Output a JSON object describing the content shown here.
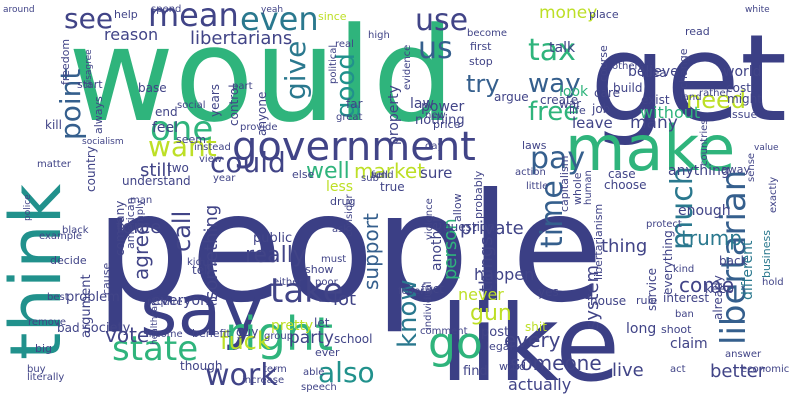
{
  "palette": {
    "dark_navy": "#3b3f85",
    "indigo": "#414487",
    "blue": "#355f8d",
    "teal": "#2a788e",
    "teal_green": "#21918c",
    "green": "#2fb47c",
    "light_green": "#7ad151",
    "yellow": "#bddf26",
    "purple": "#46327e",
    "deep_purple": "#440154"
  },
  "words": [
    {
      "text": "would",
      "color": "#2fb47c"
    },
    {
      "text": "get",
      "color": "#3b3f85"
    },
    {
      "text": "people",
      "color": "#3b3f85"
    },
    {
      "text": "like",
      "color": "#3b3f85"
    },
    {
      "text": "make",
      "color": "#2fb47c"
    },
    {
      "text": "think",
      "color": "#21918c"
    },
    {
      "text": "say",
      "color": "#3b3f85"
    },
    {
      "text": "government",
      "color": "#414487"
    },
    {
      "text": "right",
      "color": "#2fb47c"
    },
    {
      "text": "libertarian",
      "color": "#355f8d"
    },
    {
      "text": "state",
      "color": "#2fb47c"
    },
    {
      "text": "take",
      "color": "#414487"
    },
    {
      "text": "go",
      "color": "#2fb47c"
    },
    {
      "text": "mean",
      "color": "#414487"
    },
    {
      "text": "even",
      "color": "#2a788e"
    },
    {
      "text": "use",
      "color": "#414487"
    },
    {
      "text": "us",
      "color": "#355f8d"
    },
    {
      "text": "tax",
      "color": "#2fb47c"
    },
    {
      "text": "way",
      "color": "#355f8d"
    },
    {
      "text": "need",
      "color": "#bddf26"
    },
    {
      "text": "pay",
      "color": "#355f8d"
    },
    {
      "text": "time",
      "color": "#355f8d"
    },
    {
      "text": "much",
      "color": "#2a788e"
    },
    {
      "text": "want",
      "color": "#bddf26"
    },
    {
      "text": "one",
      "color": "#2fb47c"
    },
    {
      "text": "could",
      "color": "#414487"
    },
    {
      "text": "work",
      "color": "#414487"
    },
    {
      "text": "also",
      "color": "#21918c"
    },
    {
      "text": "know",
      "color": "#2a788e"
    },
    {
      "text": "give",
      "color": "#2a788e"
    },
    {
      "text": "good",
      "color": "#21918c"
    },
    {
      "text": "free",
      "color": "#2fb47c"
    },
    {
      "text": "point",
      "color": "#355f8d"
    },
    {
      "text": "see",
      "color": "#414487"
    },
    {
      "text": "libertarians",
      "color": "#414487"
    },
    {
      "text": "reason",
      "color": "#414487"
    },
    {
      "text": "try",
      "color": "#355f8d"
    },
    {
      "text": "money",
      "color": "#bddf26"
    },
    {
      "text": "talk",
      "color": "#414487"
    },
    {
      "text": "believe",
      "color": "#414487"
    },
    {
      "text": "many",
      "color": "#414487"
    },
    {
      "text": "look",
      "color": "#2fb47c"
    },
    {
      "text": "without",
      "color": "#2fb47c"
    },
    {
      "text": "leave",
      "color": "#414487"
    },
    {
      "text": "still",
      "color": "#414487"
    },
    {
      "text": "well",
      "color": "#2fb47c"
    },
    {
      "text": "market",
      "color": "#bddf26"
    },
    {
      "text": "sure",
      "color": "#414487"
    },
    {
      "text": "really",
      "color": "#414487"
    },
    {
      "text": "call",
      "color": "#414487"
    },
    {
      "text": "agree",
      "color": "#414487"
    },
    {
      "text": "force",
      "color": "#414487"
    },
    {
      "text": "support",
      "color": "#355f8d"
    },
    {
      "text": "person",
      "color": "#2fb47c"
    },
    {
      "text": "private",
      "color": "#414487"
    },
    {
      "text": "things",
      "color": "#414487"
    },
    {
      "text": "happen",
      "color": "#414487"
    },
    {
      "text": "thing",
      "color": "#414487"
    },
    {
      "text": "trump",
      "color": "#2a788e"
    },
    {
      "text": "come",
      "color": "#414487"
    },
    {
      "text": "never",
      "color": "#bddf26"
    },
    {
      "text": "gun",
      "color": "#bddf26"
    },
    {
      "text": "lot",
      "color": "#414487"
    },
    {
      "text": "every",
      "color": "#414487"
    },
    {
      "text": "vote",
      "color": "#414487"
    },
    {
      "text": "fuck",
      "color": "#bddf26"
    },
    {
      "text": "party",
      "color": "#414487"
    },
    {
      "text": "someone",
      "color": "#414487"
    },
    {
      "text": "live",
      "color": "#414487"
    },
    {
      "text": "better",
      "color": "#414487"
    },
    {
      "text": "actually",
      "color": "#414487"
    },
    {
      "text": "system",
      "color": "#414487"
    },
    {
      "text": "something",
      "color": "#414487"
    },
    {
      "text": "everyone",
      "color": "#414487"
    },
    {
      "text": "country",
      "color": "#414487"
    },
    {
      "text": "understand",
      "color": "#414487"
    },
    {
      "text": "public",
      "color": "#414487"
    },
    {
      "text": "enough",
      "color": "#414487"
    },
    {
      "text": "property",
      "color": "#414487"
    },
    {
      "text": "nothing",
      "color": "#414487"
    },
    {
      "text": "power",
      "color": "#414487"
    },
    {
      "text": "create",
      "color": "#414487"
    },
    {
      "text": "different",
      "color": "#2a788e"
    },
    {
      "text": "business",
      "color": "#2a788e"
    },
    {
      "text": "world",
      "color": "#414487"
    },
    {
      "text": "cost",
      "color": "#414487"
    },
    {
      "text": "might",
      "color": "#414487"
    },
    {
      "text": "issue",
      "color": "#414487"
    },
    {
      "text": "exist",
      "color": "#414487"
    },
    {
      "text": "idea",
      "color": "#414487"
    },
    {
      "text": "course",
      "color": "#414487"
    },
    {
      "text": "care",
      "color": "#414487"
    },
    {
      "text": "job",
      "color": "#414487"
    },
    {
      "text": "war",
      "color": "#414487"
    },
    {
      "text": "first",
      "color": "#414487"
    },
    {
      "text": "stop",
      "color": "#414487"
    },
    {
      "text": "place",
      "color": "#414487"
    },
    {
      "text": "read",
      "color": "#414487"
    },
    {
      "text": "white",
      "color": "#414487"
    },
    {
      "text": "help",
      "color": "#414487"
    },
    {
      "text": "spend",
      "color": "#414487"
    },
    {
      "text": "yeah",
      "color": "#414487"
    },
    {
      "text": "since",
      "color": "#bddf26"
    },
    {
      "text": "high",
      "color": "#414487"
    },
    {
      "text": "real",
      "color": "#414487"
    },
    {
      "text": "years",
      "color": "#414487"
    },
    {
      "text": "control",
      "color": "#414487"
    },
    {
      "text": "part",
      "color": "#414487"
    },
    {
      "text": "anyone",
      "color": "#414487"
    },
    {
      "text": "base",
      "color": "#414487"
    },
    {
      "text": "freedom",
      "color": "#414487"
    },
    {
      "text": "start",
      "color": "#414487"
    },
    {
      "text": "always",
      "color": "#414487"
    },
    {
      "text": "kill",
      "color": "#414487"
    },
    {
      "text": "end",
      "color": "#414487"
    },
    {
      "text": "feel",
      "color": "#414487"
    },
    {
      "text": "seem",
      "color": "#414487"
    },
    {
      "text": "instead",
      "color": "#414487"
    },
    {
      "text": "view",
      "color": "#414487"
    },
    {
      "text": "two",
      "color": "#414487"
    },
    {
      "text": "day",
      "color": "#414487"
    },
    {
      "text": "laws",
      "color": "#414487"
    },
    {
      "text": "fund",
      "color": "#414487"
    },
    {
      "text": "less",
      "color": "#bddf26"
    },
    {
      "text": "else",
      "color": "#414487"
    },
    {
      "text": "drug",
      "color": "#414487"
    },
    {
      "text": "true",
      "color": "#414487"
    },
    {
      "text": "sub",
      "color": "#414487"
    },
    {
      "text": "sell",
      "color": "#414487"
    },
    {
      "text": "little",
      "color": "#414487"
    },
    {
      "text": "case",
      "color": "#414487"
    },
    {
      "text": "choose",
      "color": "#414487"
    },
    {
      "text": "anything",
      "color": "#414487"
    },
    {
      "text": "away",
      "color": "#414487"
    },
    {
      "text": "sense",
      "color": "#414487"
    },
    {
      "text": "value",
      "color": "#414487"
    },
    {
      "text": "exactly",
      "color": "#414487"
    },
    {
      "text": "human",
      "color": "#414487"
    },
    {
      "text": "company",
      "color": "#414487"
    },
    {
      "text": "tell",
      "color": "#414487"
    },
    {
      "text": "kid",
      "color": "#414487"
    },
    {
      "text": "run",
      "color": "#414487"
    },
    {
      "text": "either",
      "color": "#414487"
    },
    {
      "text": "show",
      "color": "#414487"
    },
    {
      "text": "poor",
      "color": "#414487"
    },
    {
      "text": "must",
      "color": "#414487"
    },
    {
      "text": "ask",
      "color": "#414487"
    },
    {
      "text": "consider",
      "color": "#414487"
    },
    {
      "text": "another",
      "color": "#414487"
    },
    {
      "text": "question",
      "color": "#414487"
    },
    {
      "text": "yes",
      "color": "#414487"
    },
    {
      "text": "federal",
      "color": "#414487"
    },
    {
      "text": "fact",
      "color": "#414487"
    },
    {
      "text": "protect",
      "color": "#414487"
    },
    {
      "text": "kind",
      "color": "#414487"
    },
    {
      "text": "keep",
      "color": "#414487"
    },
    {
      "text": "back",
      "color": "#414487"
    },
    {
      "text": "hold",
      "color": "#414487"
    },
    {
      "text": "interest",
      "color": "#414487"
    },
    {
      "text": "ban",
      "color": "#414487"
    },
    {
      "text": "rule",
      "color": "#414487"
    },
    {
      "text": "house",
      "color": "#414487"
    },
    {
      "text": "long",
      "color": "#414487"
    },
    {
      "text": "claim",
      "color": "#414487"
    },
    {
      "text": "already",
      "color": "#414487"
    },
    {
      "text": "answer",
      "color": "#414487"
    },
    {
      "text": "economic",
      "color": "#414487"
    },
    {
      "text": "shoot",
      "color": "#414487"
    },
    {
      "text": "post",
      "color": "#414487"
    },
    {
      "text": "legal",
      "color": "#414487"
    },
    {
      "text": "find",
      "color": "#414487"
    },
    {
      "text": "word",
      "color": "#414487"
    },
    {
      "text": "comment",
      "color": "#414487"
    },
    {
      "text": "shit",
      "color": "#bddf26"
    },
    {
      "text": "school",
      "color": "#414487"
    },
    {
      "text": "let",
      "color": "#414487"
    },
    {
      "text": "pretty",
      "color": "#bddf26"
    },
    {
      "text": "ever",
      "color": "#414487"
    },
    {
      "text": "group",
      "color": "#414487"
    },
    {
      "text": "guy",
      "color": "#414487"
    },
    {
      "text": "society",
      "color": "#414487"
    },
    {
      "text": "bad",
      "color": "#414487"
    },
    {
      "text": "problem",
      "color": "#414487"
    },
    {
      "text": "argument",
      "color": "#414487"
    },
    {
      "text": "decide",
      "color": "#414487"
    },
    {
      "text": "example",
      "color": "#414487"
    },
    {
      "text": "police",
      "color": "#414487"
    },
    {
      "text": "black",
      "color": "#414487"
    },
    {
      "text": "cause",
      "color": "#414487"
    },
    {
      "text": "remove",
      "color": "#414487"
    },
    {
      "text": "big",
      "color": "#414487"
    },
    {
      "text": "buy",
      "color": "#414487"
    },
    {
      "text": "literally",
      "color": "#414487"
    },
    {
      "text": "income",
      "color": "#414487"
    },
    {
      "text": "benefit",
      "color": "#414487"
    },
    {
      "text": "healthcare",
      "color": "#414487"
    },
    {
      "text": "though",
      "color": "#414487"
    },
    {
      "text": "increase",
      "color": "#414487"
    },
    {
      "text": "speech",
      "color": "#414487"
    },
    {
      "text": "able",
      "color": "#414487"
    },
    {
      "text": "matter",
      "color": "#414487"
    },
    {
      "text": "law",
      "color": "#414487"
    },
    {
      "text": "far",
      "color": "#414487"
    },
    {
      "text": "new",
      "color": "#414487"
    },
    {
      "text": "great",
      "color": "#414487"
    },
    {
      "text": "price",
      "color": "#414487"
    },
    {
      "text": "argue",
      "color": "#414487"
    },
    {
      "text": "life",
      "color": "#414487"
    },
    {
      "text": "rather",
      "color": "#414487"
    },
    {
      "text": "change",
      "color": "#414487"
    },
    {
      "text": "land",
      "color": "#414487"
    },
    {
      "text": "build",
      "color": "#414487"
    },
    {
      "text": "others",
      "color": "#414487"
    },
    {
      "text": "evidence",
      "color": "#414487"
    },
    {
      "text": "political",
      "color": "#414487"
    },
    {
      "text": "become",
      "color": "#414487"
    },
    {
      "text": "social",
      "color": "#414487"
    },
    {
      "text": "socialism",
      "color": "#414487"
    },
    {
      "text": "provide",
      "color": "#414487"
    },
    {
      "text": "disagree",
      "color": "#414487"
    },
    {
      "text": "around",
      "color": "#414487"
    },
    {
      "text": "year",
      "color": "#414487"
    },
    {
      "text": "simply",
      "color": "#414487"
    },
    {
      "text": "american",
      "color": "#414487"
    },
    {
      "text": "require",
      "color": "#414487"
    },
    {
      "text": "best",
      "color": "#414487"
    },
    {
      "text": "man",
      "color": "#414487"
    },
    {
      "text": "violence",
      "color": "#414487"
    },
    {
      "text": "allow",
      "color": "#414487"
    },
    {
      "text": "whole",
      "color": "#414487"
    },
    {
      "text": "probably",
      "color": "#414487"
    },
    {
      "text": "service",
      "color": "#414487"
    },
    {
      "text": "capitalism",
      "color": "#414487"
    },
    {
      "text": "everything",
      "color": "#414487"
    },
    {
      "text": "individual",
      "color": "#414487"
    },
    {
      "text": "term",
      "color": "#414487"
    },
    {
      "text": "countries",
      "color": "#414487"
    },
    {
      "text": "libertarianism",
      "color": "#414487"
    },
    {
      "text": "action",
      "color": "#414487"
    },
    {
      "text": "act",
      "color": "#414487"
    }
  ]
}
